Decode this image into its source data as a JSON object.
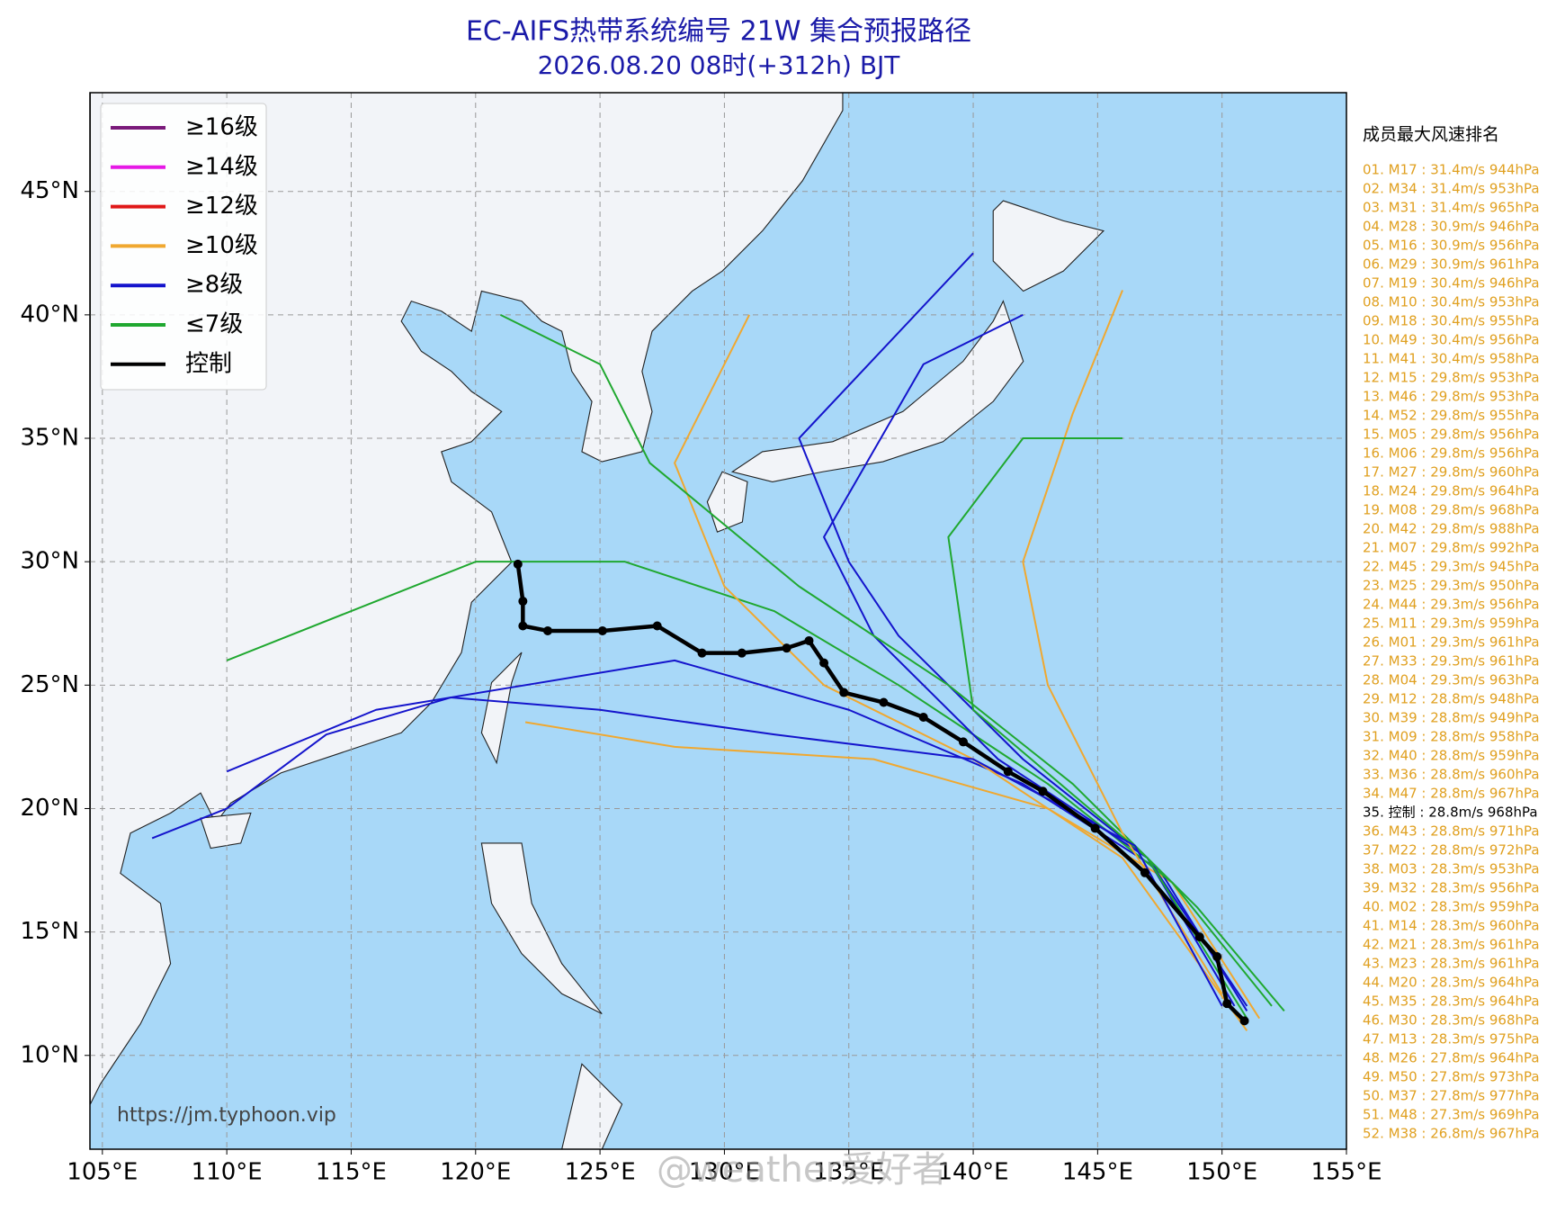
{
  "chart_data": {
    "type": "map",
    "title": "EC-AIFS热带系统编号 21W 集合预报路径",
    "subtitle": "2026.08.20 08时(+312h) BJT",
    "title_color": "#1a1aa8",
    "xlim": [
      104.5,
      155
    ],
    "ylim": [
      6.2,
      49
    ],
    "xticks": [
      {
        "value": 105,
        "label": "105°E"
      },
      {
        "value": 110,
        "label": "110°E"
      },
      {
        "value": 115,
        "label": "115°E"
      },
      {
        "value": 120,
        "label": "120°E"
      },
      {
        "value": 125,
        "label": "125°E"
      },
      {
        "value": 130,
        "label": "130°E"
      },
      {
        "value": 135,
        "label": "135°E"
      },
      {
        "value": 140,
        "label": "140°E"
      },
      {
        "value": 145,
        "label": "145°E"
      },
      {
        "value": 150,
        "label": "150°E"
      },
      {
        "value": 155,
        "label": "155°E"
      }
    ],
    "yticks": [
      {
        "value": 10,
        "label": "10°N"
      },
      {
        "value": 15,
        "label": "15°N"
      },
      {
        "value": 20,
        "label": "20°N"
      },
      {
        "value": 25,
        "label": "25°N"
      },
      {
        "value": 30,
        "label": "30°N"
      },
      {
        "value": 35,
        "label": "35°N"
      },
      {
        "value": 40,
        "label": "40°N"
      },
      {
        "value": 45,
        "label": "45°N"
      }
    ],
    "grid": true,
    "legend": [
      {
        "label": "≥16级",
        "color": "#7a1a7a"
      },
      {
        "label": "≥14级",
        "color": "#e619e6"
      },
      {
        "label": "≥12级",
        "color": "#e01818"
      },
      {
        "label": "≥10级",
        "color": "#f0a830"
      },
      {
        "label": "≥8级",
        "color": "#1414cc"
      },
      {
        "label": "≤7级",
        "color": "#20a830"
      },
      {
        "label": "控制",
        "color": "#000000"
      }
    ],
    "tracks": [
      {
        "color": "#f0a830",
        "lon": [
          151.5,
          148,
          143,
          136,
          128,
          122
        ],
        "lat": [
          11.5,
          17,
          20,
          22,
          22.5,
          23.5
        ]
      },
      {
        "color": "#1414cc",
        "lon": [
          151,
          147.5,
          142,
          135,
          128,
          122,
          116,
          110
        ],
        "lat": [
          11.8,
          17.5,
          21,
          24,
          26,
          25,
          24,
          21.5
        ]
      },
      {
        "color": "#20a830",
        "lon": [
          152,
          148,
          143,
          137,
          132,
          126,
          120,
          115,
          110
        ],
        "lat": [
          12,
          17,
          21,
          25,
          28,
          30,
          30,
          28,
          26
        ]
      },
      {
        "color": "#1414cc",
        "lon": [
          150.5,
          147,
          141,
          136,
          134,
          138,
          142
        ],
        "lat": [
          12,
          18,
          22,
          27,
          31,
          38,
          40
        ]
      },
      {
        "color": "#f0a830",
        "lon": [
          151,
          146,
          140,
          134,
          130,
          128,
          131
        ],
        "lat": [
          11,
          18,
          22,
          25,
          29,
          34,
          40
        ]
      },
      {
        "color": "#1414cc",
        "lon": [
          151,
          147,
          142,
          137,
          135,
          133,
          140
        ],
        "lat": [
          12,
          18,
          22,
          27,
          30,
          35,
          42.5
        ]
      },
      {
        "color": "#20a830",
        "lon": [
          152.5,
          149,
          144,
          139,
          133,
          127,
          125,
          121
        ],
        "lat": [
          11.8,
          16,
          21,
          25,
          29,
          34,
          38,
          40
        ]
      },
      {
        "color": "#f0a830",
        "lon": [
          150,
          146,
          143,
          142,
          144,
          146
        ],
        "lat": [
          12.5,
          19,
          25,
          30,
          36,
          41
        ]
      },
      {
        "color": "#20a830",
        "lon": [
          151,
          147,
          140,
          139,
          142,
          146
        ],
        "lat": [
          11.5,
          18,
          24,
          31,
          35,
          35
        ]
      },
      {
        "color": "#1414cc",
        "lon": [
          150,
          146.5,
          140,
          132,
          125,
          119,
          114,
          110,
          107
        ],
        "lat": [
          12,
          18.5,
          22,
          23,
          24,
          24.5,
          23,
          20,
          18.8
        ]
      }
    ],
    "control": {
      "color": "#000000",
      "lon": [
        150.9,
        150.2,
        149.8,
        149.1,
        146.9,
        144.9,
        142.8,
        141.4,
        139.6,
        138.0,
        136.4,
        134.8,
        134.0,
        133.4,
        132.5,
        130.7,
        129.1,
        127.3,
        125.1,
        122.9,
        121.9,
        121.9,
        121.7
      ],
      "lat": [
        11.4,
        12.1,
        14.0,
        14.8,
        17.4,
        19.2,
        20.7,
        21.5,
        22.7,
        23.7,
        24.3,
        24.7,
        25.9,
        26.8,
        26.5,
        26.3,
        26.3,
        27.4,
        27.2,
        27.2,
        27.4,
        28.4,
        29.9
      ]
    },
    "watermark": "https://jm.typhoon.vip",
    "overlay": "@weather爱好者",
    "ranking": {
      "title": "成员最大风速排名",
      "color": "#e0a020",
      "items": [
        "01. M17 : 31.4m/s 944hPa",
        "02. M34 : 31.4m/s 953hPa",
        "03. M31 : 31.4m/s 965hPa",
        "04. M28 : 30.9m/s 946hPa",
        "05. M16 : 30.9m/s 956hPa",
        "06. M29 : 30.9m/s 961hPa",
        "07. M19 : 30.4m/s 946hPa",
        "08. M10 : 30.4m/s 953hPa",
        "09. M18 : 30.4m/s 955hPa",
        "10. M49 : 30.4m/s 956hPa",
        "11. M41 : 30.4m/s 958hPa",
        "12. M15 : 29.8m/s 953hPa",
        "13. M46 : 29.8m/s 953hPa",
        "14. M52 : 29.8m/s 955hPa",
        "15. M05 : 29.8m/s 956hPa",
        "16. M06 : 29.8m/s 956hPa",
        "17. M27 : 29.8m/s 960hPa",
        "18. M24 : 29.8m/s 964hPa",
        "19. M08 : 29.8m/s 968hPa",
        "20. M42 : 29.8m/s 988hPa",
        "21. M07 : 29.8m/s 992hPa",
        "22. M45 : 29.3m/s 945hPa",
        "23. M25 : 29.3m/s 950hPa",
        "24. M44 : 29.3m/s 956hPa",
        "25. M11 : 29.3m/s 959hPa",
        "26. M01 : 29.3m/s 961hPa",
        "27. M33 : 29.3m/s 961hPa",
        "28. M04 : 29.3m/s 963hPa",
        "29. M12 : 28.8m/s 948hPa",
        "30. M39 : 28.8m/s 949hPa",
        "31. M09 : 28.8m/s 958hPa",
        "32. M40 : 28.8m/s 959hPa",
        "33. M36 : 28.8m/s 960hPa",
        "34. M47 : 28.8m/s 967hPa",
        {
          "text": "35. 控制 : 28.8m/s 968hPa",
          "color": "#000000"
        },
        "36. M43 : 28.8m/s 971hPa",
        "37. M22 : 28.8m/s 972hPa",
        "38. M03 : 28.3m/s 953hPa",
        "39. M32 : 28.3m/s 956hPa",
        "40. M02 : 28.3m/s 959hPa",
        "41. M14 : 28.3m/s 960hPa",
        "42. M21 : 28.3m/s 961hPa",
        "43. M23 : 28.3m/s 961hPa",
        "44. M20 : 28.3m/s 964hPa",
        "45. M35 : 28.3m/s 964hPa",
        "46. M30 : 28.3m/s 968hPa",
        "47. M13 : 28.3m/s 975hPa",
        "48. M26 : 27.8m/s 964hPa",
        "49. M50 : 27.8m/s 973hPa",
        "50. M37 : 27.8m/s 977hPa",
        "51. M48 : 27.3m/s 969hPa",
        "52. M38 : 26.8m/s 967hPa"
      ]
    }
  }
}
